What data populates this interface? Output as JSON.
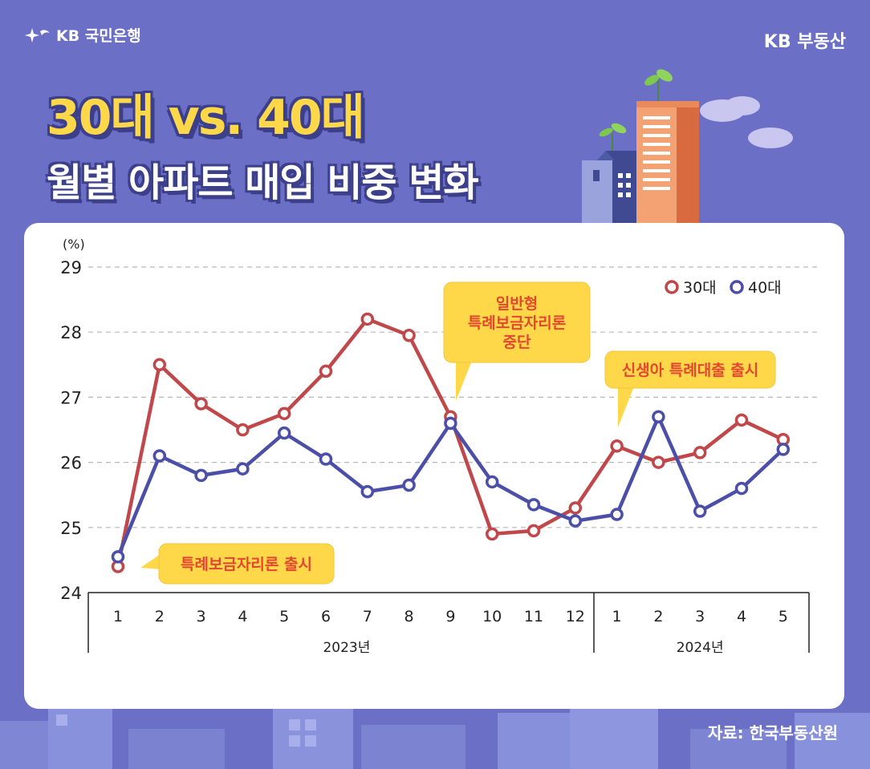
{
  "brand": {
    "left_logo": "KB 국민은행",
    "right_logo": "KB 부동산"
  },
  "title": {
    "line1": "30대 vs. 40대",
    "line2": "월별 아파트 매입 비중 변화"
  },
  "source": "자료: 한국부동산원",
  "colors": {
    "background": "#6b6fc6",
    "series_30": "#c0474a",
    "series_40": "#4b4fa8",
    "callout": "#ffd84a",
    "callout_text": "#e0482f"
  },
  "chart_data": {
    "type": "line",
    "unit_label": "(%)",
    "ylim": [
      24,
      29
    ],
    "yticks": [
      "29",
      "28",
      "27",
      "26",
      "25",
      "24"
    ],
    "x": [
      "1",
      "2",
      "3",
      "4",
      "5",
      "6",
      "7",
      "8",
      "9",
      "10",
      "11",
      "12",
      "1",
      "2",
      "3",
      "4",
      "5"
    ],
    "groups": [
      {
        "label": "2023년",
        "count": 12
      },
      {
        "label": "2024년",
        "count": 5
      }
    ],
    "series": [
      {
        "name": "30대",
        "color": "#c0474a",
        "values": [
          24.4,
          27.5,
          26.9,
          26.5,
          26.75,
          27.4,
          28.2,
          27.95,
          26.7,
          24.9,
          24.95,
          25.3,
          26.25,
          26.0,
          26.15,
          26.65,
          26.35
        ]
      },
      {
        "name": "40대",
        "color": "#4b4fa8",
        "values": [
          24.55,
          26.1,
          25.8,
          25.9,
          26.45,
          26.05,
          25.55,
          25.65,
          26.6,
          25.7,
          25.35,
          25.1,
          25.2,
          26.7,
          25.25,
          25.6,
          26.2
        ]
      }
    ],
    "grid": "dashed horizontal",
    "legend": "top-right",
    "annotations": [
      {
        "text": "특례보금자리론 출시",
        "index": 0
      },
      {
        "text": "일반형\n특례보금자리론\n중단",
        "index": 8
      },
      {
        "text": "신생아 특례대출 출시",
        "index": 12
      }
    ]
  }
}
